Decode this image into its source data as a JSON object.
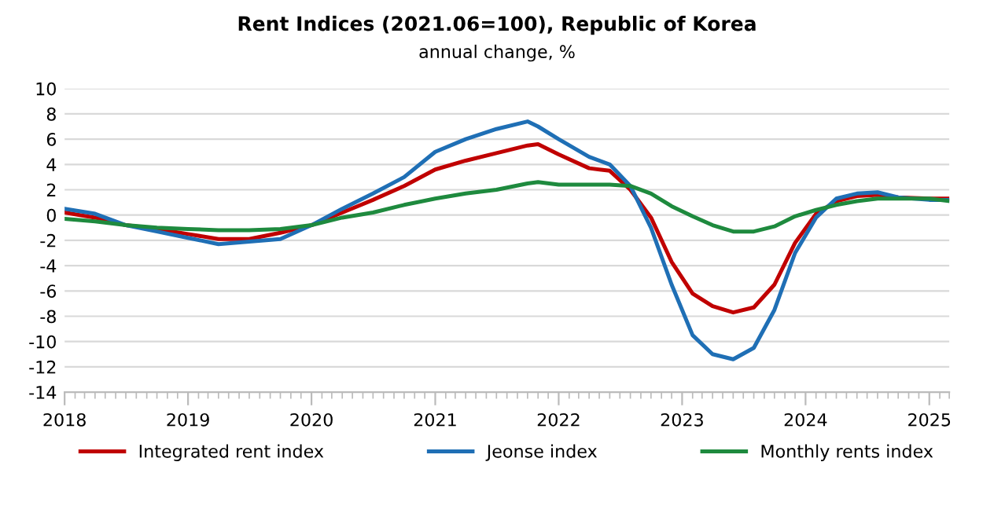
{
  "chart_data": {
    "type": "line",
    "title": "Rent Indices (2021.06=100), Republic of Korea",
    "subtitle": "annual change, %",
    "x": [
      "2018-01",
      "2018-04",
      "2018-07",
      "2018-10",
      "2019-01",
      "2019-04",
      "2019-07",
      "2019-10",
      "2020-01",
      "2020-04",
      "2020-07",
      "2020-10",
      "2021-01",
      "2021-04",
      "2021-07",
      "2021-10",
      "2021-11",
      "2022-01",
      "2022-04",
      "2022-06",
      "2022-08",
      "2022-10",
      "2022-12",
      "2023-02",
      "2023-04",
      "2023-06",
      "2023-08",
      "2023-10",
      "2023-12",
      "2024-02",
      "2024-04",
      "2024-06",
      "2024-08",
      "2024-10",
      "2025-01",
      "2025-03"
    ],
    "series": [
      {
        "name": "Integrated rent index",
        "color": "#c00000",
        "values": [
          0.2,
          -0.2,
          -0.8,
          -1.1,
          -1.5,
          -1.9,
          -1.9,
          -1.4,
          -0.8,
          0.2,
          1.2,
          2.3,
          3.6,
          4.3,
          4.9,
          5.5,
          5.6,
          4.8,
          3.7,
          3.5,
          2.0,
          -0.2,
          -3.7,
          -6.2,
          -7.2,
          -7.7,
          -7.3,
          -5.5,
          -2.2,
          0.1,
          1.1,
          1.5,
          1.6,
          1.4,
          1.3,
          1.3
        ]
      },
      {
        "name": "Jeonse index",
        "color": "#1f6fb5",
        "values": [
          0.5,
          0.1,
          -0.8,
          -1.3,
          -1.8,
          -2.3,
          -2.1,
          -1.9,
          -0.8,
          0.5,
          1.7,
          3.0,
          5.0,
          6.0,
          6.8,
          7.4,
          7.0,
          6.0,
          4.6,
          4.0,
          2.3,
          -1.0,
          -5.5,
          -9.5,
          -11.0,
          -11.4,
          -10.5,
          -7.5,
          -3.0,
          -0.2,
          1.3,
          1.7,
          1.8,
          1.4,
          1.2,
          1.2
        ]
      },
      {
        "name": "Monthly rents index",
        "color": "#1e8a3e",
        "values": [
          -0.3,
          -0.5,
          -0.8,
          -1.0,
          -1.1,
          -1.2,
          -1.2,
          -1.1,
          -0.8,
          -0.2,
          0.2,
          0.8,
          1.3,
          1.7,
          2.0,
          2.5,
          2.6,
          2.4,
          2.4,
          2.4,
          2.3,
          1.7,
          0.7,
          -0.1,
          -0.8,
          -1.3,
          -1.3,
          -0.9,
          -0.1,
          0.4,
          0.8,
          1.1,
          1.3,
          1.3,
          1.3,
          1.1
        ]
      }
    ],
    "xlim": [
      "2018-01",
      "2025-03"
    ],
    "xticks": [
      "2018",
      "2019",
      "2020",
      "2021",
      "2022",
      "2023",
      "2024",
      "2025"
    ],
    "ylim": [
      -14,
      10
    ],
    "yticks": [
      -14,
      -12,
      -10,
      -8,
      -6,
      -4,
      -2,
      0,
      2,
      4,
      6,
      8,
      10
    ],
    "grid": "y",
    "legend": "bottom",
    "line_style": "solid",
    "marker": "none"
  }
}
